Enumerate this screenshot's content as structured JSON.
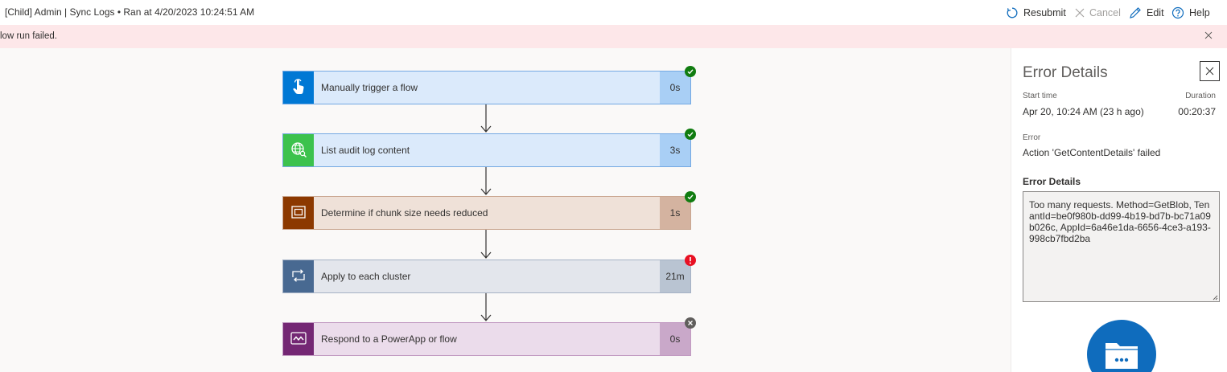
{
  "header": {
    "title": "[Child] Admin | Sync Logs • Ran at 4/20/2023 10:24:51 AM",
    "commands": {
      "resubmit": "Resubmit",
      "cancel": "Cancel",
      "edit": "Edit",
      "help": "Help"
    }
  },
  "banner": {
    "message": "low run failed."
  },
  "flow": {
    "steps": [
      {
        "label": "Manually trigger a flow",
        "duration": "0s",
        "status": "succeeded",
        "tile_color": "#0078d4",
        "body_color": "#dbeafb",
        "dur_color": "#a9cff5",
        "border_color": "#74a9e3",
        "icon": "touch-hand-icon"
      },
      {
        "label": "List audit log content",
        "duration": "3s",
        "status": "succeeded",
        "tile_color": "#3cc24d",
        "body_color": "#dbeafb",
        "dur_color": "#a9cff5",
        "border_color": "#74a9e3",
        "icon": "globe-search-icon"
      },
      {
        "label": "Determine if chunk size needs reduced",
        "duration": "1s",
        "status": "succeeded",
        "tile_color": "#8c3900",
        "body_color": "#efe1d8",
        "dur_color": "#d4b3a0",
        "border_color": "#c9a690",
        "icon": "compose-icon"
      },
      {
        "label": "Apply to each cluster",
        "duration": "21m",
        "status": "failed",
        "tile_color": "#486991",
        "body_color": "#e3e6ec",
        "dur_color": "#b9c4d2",
        "border_color": "#a5b2c5",
        "icon": "loop-icon"
      },
      {
        "label": "Respond to a PowerApp or flow",
        "duration": "0s",
        "status": "cancelled",
        "tile_color": "#742774",
        "body_color": "#ebdceb",
        "dur_color": "#c9a8c9",
        "border_color": "#c29bc2",
        "icon": "powerapps-icon"
      }
    ]
  },
  "error_panel": {
    "title": "Error Details",
    "start_time_label": "Start time",
    "start_time_value": "Apr 20, 10:24 AM (23 h ago)",
    "duration_label": "Duration",
    "duration_value": "00:20:37",
    "error_label": "Error",
    "error_value": "Action 'GetContentDetails' failed",
    "details_heading": "Error Details",
    "details_text": "Too many requests. Method=GetBlob, TenantId=be0f980b-dd99-4b19-bd7b-bc71a09b026c, AppId=6a46e1da-6656-4ce3-a193-998cb7fbd2ba",
    "icon": "folder-more-icon"
  },
  "colors": {
    "success": "#107c10",
    "failure": "#e81123",
    "cancelled": "#605e5c",
    "accent": "#0f6cbd",
    "banner_bg": "#fde7e9"
  }
}
